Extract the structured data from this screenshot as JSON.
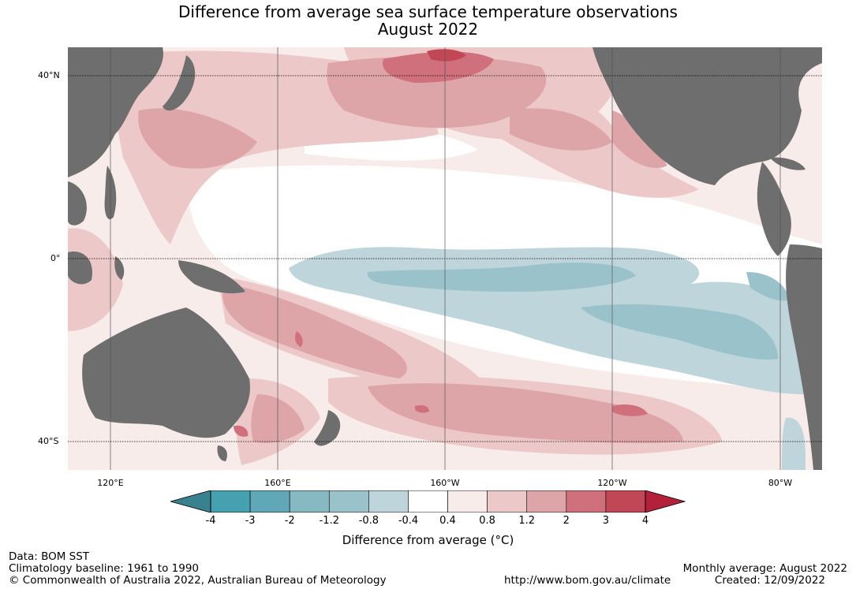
{
  "title": {
    "line1": "Difference from average sea surface temperature observations",
    "line2": "August 2022"
  },
  "map": {
    "lat_labels": [
      "40°N",
      "0°",
      "40°S"
    ],
    "lon_labels": [
      "120°E",
      "160°E",
      "160°W",
      "120°W",
      "80°W"
    ],
    "land_color": "#6e6e6e",
    "gridline_style": "dotted-latitudes-solid-longitudes"
  },
  "colorbar": {
    "title": "Difference from average (°C)",
    "ticks": [
      "-4",
      "-3",
      "-2",
      "-1.2",
      "-0.8",
      "-0.4",
      "0.4",
      "0.8",
      "1.2",
      "2",
      "3",
      "4"
    ],
    "colors": [
      "#45a0b0",
      "#60a8b8",
      "#86b9c2",
      "#9ac2ca",
      "#bdd5db",
      "#ffffff",
      "#f8eceb",
      "#ecc9c8",
      "#dea5a9",
      "#cf707c",
      "#c14757"
    ],
    "under_color": "#3a8190",
    "over_color": "#b2203a",
    "extend": "both"
  },
  "footer": {
    "data": "Data: BOM SST",
    "baseline": "Climatology baseline: 1961 to 1990",
    "copyright": "© Commonwealth of Australia 2022, Australian Bureau of Meteorology",
    "url": "http://www.bom.gov.au/climate",
    "monthly": "Monthly average: August 2022",
    "created": "Created: 12/09/2022"
  }
}
